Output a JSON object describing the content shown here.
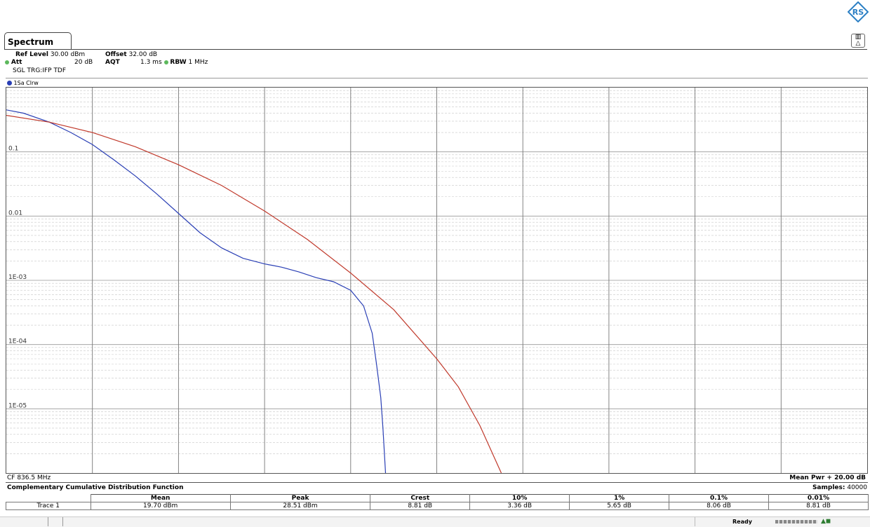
{
  "window": {
    "tab_label": "Spectrum"
  },
  "settings": {
    "ref_level_label": "Ref Level",
    "ref_level_value": "30.00 dBm",
    "offset_label": "Offset",
    "offset_value": "32.00 dB",
    "att_label": "Att",
    "att_value": "20 dB",
    "aqt_label": "AQT",
    "aqt_value": "1.3 ms",
    "rbw_label": "RBW",
    "rbw_value": "1 MHz",
    "mode_line": "SGL TRG:IFP TDF",
    "trace_label": "1Sa Clrw"
  },
  "chart_data": {
    "type": "line",
    "title": "Complementary Cumulative Distribution Function",
    "y_scale": "log",
    "ylim": [
      1e-06,
      1
    ],
    "y_tick_labels": [
      "0.1",
      "0.01",
      "1E-03",
      "1E-04",
      "1E-05"
    ],
    "x_division_count": 10,
    "x_range_db": [
      0,
      20
    ],
    "x_left_label": "CF 836.5 MHz",
    "x_right_label": "Mean Pwr + 20.00 dB",
    "grid": true,
    "series": [
      {
        "color": "#2a3fb5",
        "x": [
          0,
          0.4,
          1.0,
          1.5,
          2.0,
          2.5,
          3.0,
          3.5,
          4.0,
          4.5,
          5.0,
          5.5,
          6.0,
          6.2,
          6.4,
          6.8,
          7.2,
          7.6,
          8.0,
          8.3,
          8.5,
          8.6,
          8.7,
          8.75,
          8.81
        ],
        "y": [
          0.45,
          0.4,
          0.29,
          0.2,
          0.13,
          0.075,
          0.042,
          0.022,
          0.011,
          0.0055,
          0.0032,
          0.0022,
          0.0018,
          0.0017,
          0.0016,
          0.00135,
          0.0011,
          0.00095,
          0.0007,
          0.0004,
          0.00015,
          5e-05,
          1.5e-05,
          5e-06,
          1e-06
        ]
      },
      {
        "color": "#c0392b",
        "x": [
          0,
          1.0,
          2.0,
          3.0,
          4.0,
          5.0,
          6.0,
          7.0,
          8.0,
          9.0,
          10.0,
          10.5,
          11.0,
          11.5
        ],
        "y": [
          0.37,
          0.29,
          0.2,
          0.12,
          0.063,
          0.03,
          0.012,
          0.0043,
          0.0013,
          0.00035,
          6e-05,
          2.2e-05,
          5.5e-06,
          1e-06
        ]
      }
    ]
  },
  "results": {
    "title": "Complementary Cumulative Distribution Function",
    "samples_label": "Samples:",
    "samples_value": "40000",
    "headers": [
      "Mean",
      "Peak",
      "Crest",
      "10%",
      "1%",
      "0.1%",
      "0.01%"
    ],
    "row_label": "Trace 1",
    "row_values": [
      "19.70 dBm",
      "28.51 dBm",
      "8.81 dB",
      "3.36 dB",
      "5.65 dB",
      "8.06 dB",
      "8.81 dB"
    ]
  },
  "status": {
    "text": "Ready"
  }
}
